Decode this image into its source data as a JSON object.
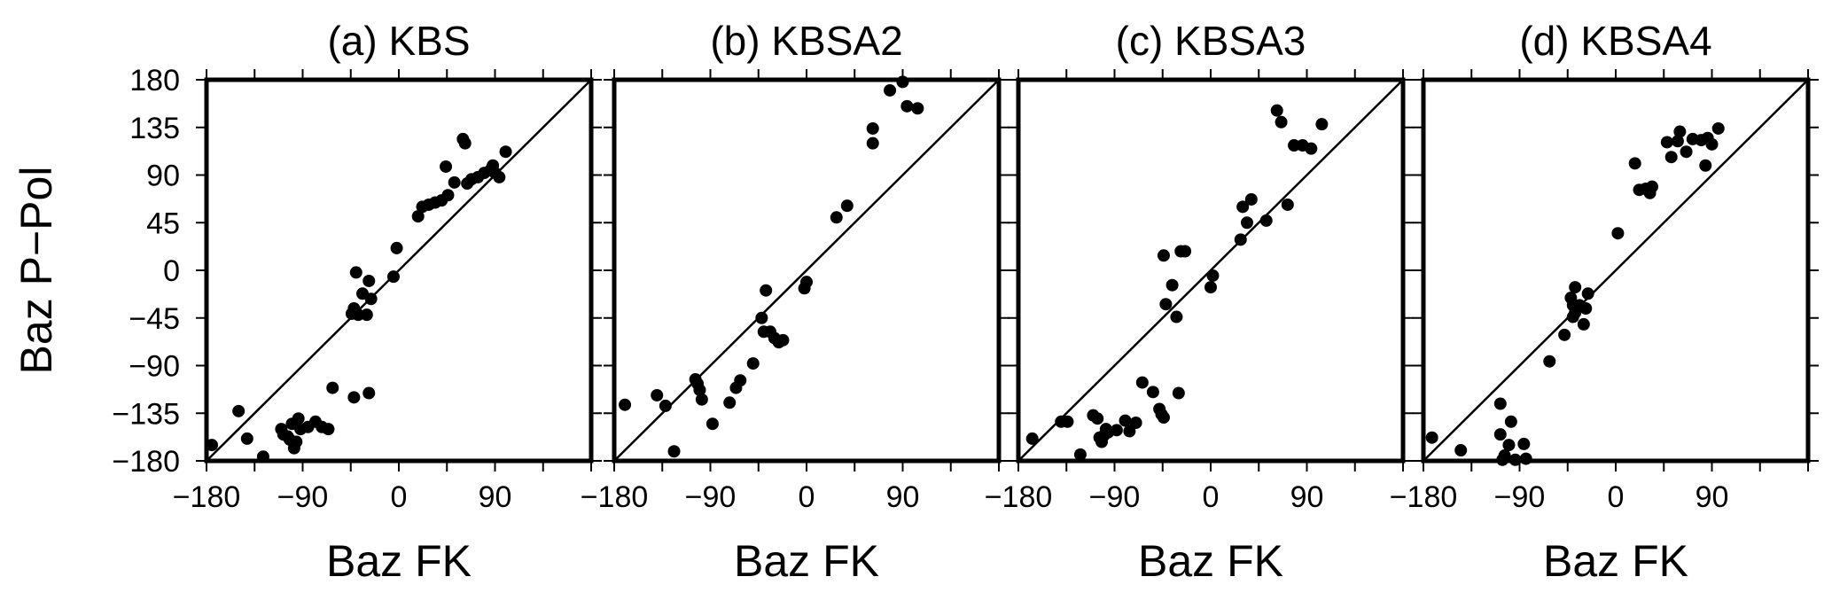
{
  "chart_data": [
    {
      "type": "scatter",
      "title": "(a) KBS",
      "xlabel": "Baz FK",
      "ylabel": "Baz P−Pol",
      "xlim": [
        -180,
        180
      ],
      "ylim": [
        -180,
        180
      ],
      "xticks": [
        "−180",
        "−90",
        "0",
        "90"
      ],
      "yticks": [
        "180",
        "135",
        "90",
        "45",
        "0",
        "−45",
        "−90",
        "−135",
        "−180"
      ],
      "grid": false,
      "reference_line": "y = x",
      "points": [
        [
          -175,
          -165
        ],
        [
          -150,
          -133
        ],
        [
          -142,
          -159
        ],
        [
          -127,
          -176
        ],
        [
          -110,
          -150
        ],
        [
          -108,
          -155
        ],
        [
          -104,
          -157
        ],
        [
          -102,
          -160
        ],
        [
          -100,
          -145
        ],
        [
          -98,
          -168
        ],
        [
          -96,
          -162
        ],
        [
          -94,
          -140
        ],
        [
          -92,
          -150
        ],
        [
          -85,
          -148
        ],
        [
          -78,
          -143
        ],
        [
          -72,
          -148
        ],
        [
          -66,
          -150
        ],
        [
          -62,
          -111
        ],
        [
          -44,
          -41
        ],
        [
          -42,
          -36
        ],
        [
          -40,
          -2
        ],
        [
          -38,
          -42
        ],
        [
          -34,
          -22
        ],
        [
          -30,
          -42
        ],
        [
          -28,
          -10
        ],
        [
          -26,
          -27
        ],
        [
          -28,
          -116
        ],
        [
          -42,
          -120
        ],
        [
          -5,
          -6
        ],
        [
          -2,
          21
        ],
        [
          18,
          51
        ],
        [
          22,
          60
        ],
        [
          28,
          62
        ],
        [
          34,
          64
        ],
        [
          40,
          66
        ],
        [
          44,
          98
        ],
        [
          46,
          71
        ],
        [
          52,
          83
        ],
        [
          60,
          124
        ],
        [
          62,
          120
        ],
        [
          64,
          82
        ],
        [
          68,
          86
        ],
        [
          74,
          88
        ],
        [
          80,
          92
        ],
        [
          86,
          95
        ],
        [
          88,
          99
        ],
        [
          90,
          92
        ],
        [
          94,
          88
        ],
        [
          100,
          112
        ]
      ]
    },
    {
      "type": "scatter",
      "title": "(b) KBSA2",
      "xlabel": "Baz FK",
      "xlim": [
        -180,
        180
      ],
      "ylim": [
        -180,
        180
      ],
      "xticks": [
        "−180",
        "−90",
        "0",
        "90"
      ],
      "grid": false,
      "reference_line": "y = x",
      "points": [
        [
          -170,
          -127
        ],
        [
          -140,
          -118
        ],
        [
          -132,
          -128
        ],
        [
          -124,
          -171
        ],
        [
          -104,
          -103
        ],
        [
          -102,
          -107
        ],
        [
          -100,
          -113
        ],
        [
          -98,
          -122
        ],
        [
          -88,
          -145
        ],
        [
          -72,
          -125
        ],
        [
          -66,
          -111
        ],
        [
          -62,
          -104
        ],
        [
          -50,
          -88
        ],
        [
          -42,
          -45
        ],
        [
          -40,
          -58
        ],
        [
          -38,
          -19
        ],
        [
          -34,
          -58
        ],
        [
          -30,
          -64
        ],
        [
          -26,
          -68
        ],
        [
          -22,
          -66
        ],
        [
          0,
          -11
        ],
        [
          -2,
          -17
        ],
        [
          28,
          50
        ],
        [
          38,
          61
        ],
        [
          62,
          134
        ],
        [
          62,
          120
        ],
        [
          78,
          170
        ],
        [
          90,
          178
        ],
        [
          94,
          155
        ],
        [
          104,
          153
        ]
      ]
    },
    {
      "type": "scatter",
      "title": "(c) KBSA3",
      "xlabel": "Baz FK",
      "xlim": [
        -180,
        180
      ],
      "ylim": [
        -180,
        180
      ],
      "xticks": [
        "−180",
        "−90",
        "0",
        "90"
      ],
      "grid": false,
      "reference_line": "y = x",
      "points": [
        [
          -167,
          -159
        ],
        [
          -140,
          -143
        ],
        [
          -134,
          -143
        ],
        [
          -122,
          -174
        ],
        [
          -110,
          -137
        ],
        [
          -106,
          -140
        ],
        [
          -104,
          -158
        ],
        [
          -102,
          -162
        ],
        [
          -100,
          -156
        ],
        [
          -98,
          -150
        ],
        [
          -96,
          -153
        ],
        [
          -88,
          -151
        ],
        [
          -80,
          -142
        ],
        [
          -76,
          -152
        ],
        [
          -70,
          -144
        ],
        [
          -64,
          -106
        ],
        [
          -54,
          -115
        ],
        [
          -48,
          -131
        ],
        [
          -46,
          -136
        ],
        [
          -44,
          -139
        ],
        [
          -42,
          -32
        ],
        [
          -44,
          14
        ],
        [
          -36,
          -14
        ],
        [
          -32,
          -44
        ],
        [
          -30,
          -116
        ],
        [
          -28,
          18
        ],
        [
          -24,
          18
        ],
        [
          0,
          -16
        ],
        [
          2,
          -5
        ],
        [
          28,
          29
        ],
        [
          30,
          60
        ],
        [
          34,
          45
        ],
        [
          38,
          67
        ],
        [
          52,
          47
        ],
        [
          62,
          151
        ],
        [
          66,
          140
        ],
        [
          72,
          62
        ],
        [
          78,
          118
        ],
        [
          86,
          118
        ],
        [
          94,
          115
        ],
        [
          104,
          138
        ]
      ]
    },
    {
      "type": "scatter",
      "title": "(d) KBSA4",
      "xlabel": "Baz FK",
      "xlim": [
        -180,
        180
      ],
      "ylim": [
        -180,
        180
      ],
      "xticks": [
        "−180",
        "−90",
        "0",
        "90"
      ],
      "grid": false,
      "reference_line": "y = x",
      "points": [
        [
          -172,
          -158
        ],
        [
          -145,
          -170
        ],
        [
          -108,
          -126
        ],
        [
          -108,
          -155
        ],
        [
          -106,
          -179
        ],
        [
          -104,
          -175
        ],
        [
          -100,
          -165
        ],
        [
          -98,
          -143
        ],
        [
          -94,
          -179
        ],
        [
          -86,
          -164
        ],
        [
          -84,
          -178
        ],
        [
          -62,
          -86
        ],
        [
          -48,
          -61
        ],
        [
          -42,
          -26
        ],
        [
          -40,
          -33
        ],
        [
          -40,
          -44
        ],
        [
          -38,
          -40
        ],
        [
          -38,
          -16
        ],
        [
          -34,
          -33
        ],
        [
          -30,
          -51
        ],
        [
          -28,
          -36
        ],
        [
          -26,
          -22
        ],
        [
          2,
          35
        ],
        [
          18,
          101
        ],
        [
          22,
          76
        ],
        [
          28,
          77
        ],
        [
          32,
          73
        ],
        [
          34,
          79
        ],
        [
          48,
          121
        ],
        [
          52,
          107
        ],
        [
          58,
          122
        ],
        [
          60,
          131
        ],
        [
          66,
          112
        ],
        [
          72,
          124
        ],
        [
          80,
          123
        ],
        [
          84,
          99
        ],
        [
          86,
          125
        ],
        [
          90,
          119
        ],
        [
          96,
          134
        ]
      ]
    }
  ]
}
